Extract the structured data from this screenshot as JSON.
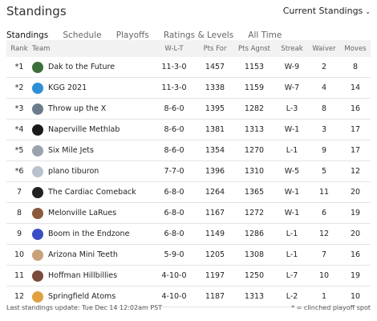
{
  "header": {
    "title": "Standings",
    "dropdown_label": "Current Standings",
    "dropdown_icon": "chevron-down-icon"
  },
  "tabs": [
    {
      "label": "Standings",
      "active": true
    },
    {
      "label": "Schedule"
    },
    {
      "label": "Playoffs"
    },
    {
      "label": "Ratings & Levels"
    },
    {
      "label": "All Time"
    }
  ],
  "columns": [
    "Rank",
    "Team",
    "W-L-T",
    "Pts For",
    "Pts Agnst",
    "Streak",
    "Waiver",
    "Moves"
  ],
  "rows": [
    {
      "rank": "*1",
      "team": "Dak to the Future",
      "wlt": "11-3-0",
      "pf": "1457",
      "pa": "1153",
      "streak": "W-9",
      "waiver": "2",
      "moves": "8",
      "logo_color": "#3b6e3b",
      "logo_icon": "team-logo-icon"
    },
    {
      "rank": "*2",
      "team": "KGG 2021",
      "wlt": "11-3-0",
      "pf": "1338",
      "pa": "1159",
      "streak": "W-7",
      "waiver": "4",
      "moves": "14",
      "logo_color": "#2e8fd6",
      "logo_icon": "team-logo-icon"
    },
    {
      "rank": "*3",
      "team": "Throw up the X",
      "wlt": "8-6-0",
      "pf": "1395",
      "pa": "1282",
      "streak": "L-3",
      "waiver": "8",
      "moves": "16",
      "logo_color": "#6b7b8c",
      "logo_icon": "team-logo-icon"
    },
    {
      "rank": "*4",
      "team": "Naperville Methlab",
      "wlt": "8-6-0",
      "pf": "1381",
      "pa": "1313",
      "streak": "W-1",
      "waiver": "3",
      "moves": "17",
      "logo_color": "#1a1a1a",
      "logo_icon": "team-logo-icon"
    },
    {
      "rank": "*5",
      "team": "Six Mile Jets",
      "wlt": "8-6-0",
      "pf": "1354",
      "pa": "1270",
      "streak": "L-1",
      "waiver": "9",
      "moves": "17",
      "logo_color": "#9aa3ad",
      "logo_icon": "team-logo-icon"
    },
    {
      "rank": "*6",
      "team": "plano tiburon",
      "wlt": "7-7-0",
      "pf": "1396",
      "pa": "1310",
      "streak": "W-5",
      "waiver": "5",
      "moves": "12",
      "logo_color": "#b9c2cc",
      "logo_icon": "team-logo-icon"
    },
    {
      "rank": "7",
      "team": "The Cardiac Comeback",
      "wlt": "6-8-0",
      "pf": "1264",
      "pa": "1365",
      "streak": "W-1",
      "waiver": "11",
      "moves": "20",
      "logo_color": "#222222",
      "logo_icon": "team-logo-icon"
    },
    {
      "rank": "8",
      "team": "Melonville LaRues",
      "wlt": "6-8-0",
      "pf": "1167",
      "pa": "1272",
      "streak": "W-1",
      "waiver": "6",
      "moves": "19",
      "logo_color": "#8a5a3c",
      "logo_icon": "team-logo-icon"
    },
    {
      "rank": "9",
      "team": "Boom in the Endzone",
      "wlt": "6-8-0",
      "pf": "1149",
      "pa": "1286",
      "streak": "L-1",
      "waiver": "12",
      "moves": "20",
      "logo_color": "#3b4fc4",
      "logo_icon": "team-logo-icon"
    },
    {
      "rank": "10",
      "team": "Arizona Mini Teeth",
      "wlt": "5-9-0",
      "pf": "1205",
      "pa": "1308",
      "streak": "L-1",
      "waiver": "7",
      "moves": "16",
      "logo_color": "#c9a27a",
      "logo_icon": "team-logo-icon"
    },
    {
      "rank": "11",
      "team": "Hoffman Hillbillies",
      "wlt": "4-10-0",
      "pf": "1197",
      "pa": "1250",
      "streak": "L-7",
      "waiver": "10",
      "moves": "19",
      "logo_color": "#7a4b3a",
      "logo_icon": "team-logo-icon"
    },
    {
      "rank": "12",
      "team": "Springfield Atoms",
      "wlt": "4-10-0",
      "pf": "1187",
      "pa": "1313",
      "streak": "L-2",
      "waiver": "1",
      "moves": "10",
      "logo_color": "#e0a040",
      "logo_icon": "team-logo-icon"
    }
  ],
  "footer": {
    "last_update": "Last standings update: Tue Dec 14 12:02am PST",
    "legend": "* = clinched playoff spot"
  }
}
